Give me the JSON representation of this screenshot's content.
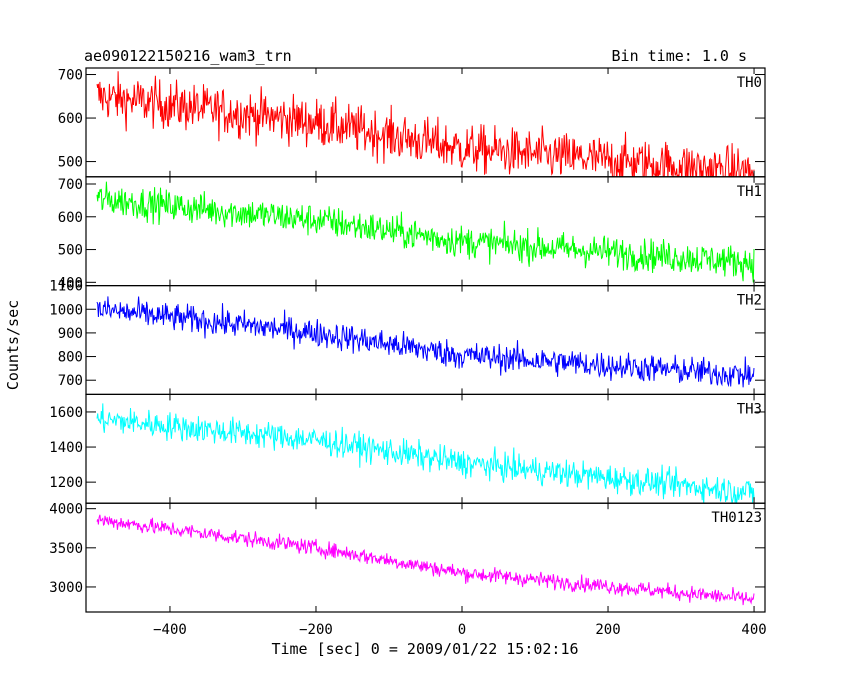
{
  "header": {
    "title": "ae090122150216_wam3_trn",
    "bin_time": "Bin time: 1.0 s"
  },
  "chart_data": {
    "type": "line",
    "title": "ae090122150216_wam3_trn",
    "xlabel": "Time [sec] 0 = 2009/01/22 15:02:16",
    "ylabel": "Counts/sec",
    "xlim": [
      -515,
      415
    ],
    "x_ticks": [
      -400,
      -200,
      0,
      200,
      400
    ],
    "x_tick_labels": [
      "−400",
      "−200",
      "0",
      "200",
      "400"
    ],
    "x_start": -500,
    "x_end": 400,
    "grid": false,
    "panels": [
      {
        "name": "TH0",
        "color": "#ff0000",
        "ylim": [
          465,
          715
        ],
        "y_ticks": [
          500,
          600,
          700
        ],
        "y_tick_labels": [
          "500",
          "600",
          "700"
        ],
        "trend": [
          [
            -500,
            650
          ],
          [
            -200,
            590
          ],
          [
            0,
            530
          ],
          [
            400,
            475
          ]
        ],
        "noise": 28
      },
      {
        "name": "TH1",
        "color": "#00ff00",
        "ylim": [
          390,
          722
        ],
        "y_ticks": [
          400,
          500,
          600,
          700
        ],
        "y_tick_labels": [
          "400",
          "500",
          "600",
          "700"
        ],
        "trend": [
          [
            -500,
            655
          ],
          [
            -200,
            590
          ],
          [
            0,
            525
          ],
          [
            400,
            460
          ]
        ],
        "noise": 25
      },
      {
        "name": "TH2",
        "color": "#0000ff",
        "ylim": [
          640,
          1100
        ],
        "y_ticks": [
          700,
          800,
          900,
          1000,
          1100
        ],
        "y_tick_labels": [
          "700",
          "800",
          "900",
          "1000",
          "1100"
        ],
        "trend": [
          [
            -500,
            1000
          ],
          [
            -200,
            900
          ],
          [
            0,
            805
          ],
          [
            400,
            720
          ]
        ],
        "noise": 30
      },
      {
        "name": "TH3",
        "color": "#00ffff",
        "ylim": [
          1080,
          1700
        ],
        "y_ticks": [
          1200,
          1400,
          1600
        ],
        "y_tick_labels": [
          "1200",
          "1400",
          "1600"
        ],
        "trend": [
          [
            -500,
            1560
          ],
          [
            -200,
            1440
          ],
          [
            0,
            1310
          ],
          [
            400,
            1140
          ]
        ],
        "noise": 40
      },
      {
        "name": "TH0123",
        "color": "#ff00ff",
        "ylim": [
          2680,
          4070
        ],
        "y_ticks": [
          3000,
          3500,
          4000
        ],
        "y_tick_labels": [
          "3000",
          "3500",
          "4000"
        ],
        "trend": [
          [
            -500,
            3860
          ],
          [
            -200,
            3500
          ],
          [
            0,
            3180
          ],
          [
            400,
            2840
          ]
        ],
        "noise": 50
      }
    ]
  }
}
